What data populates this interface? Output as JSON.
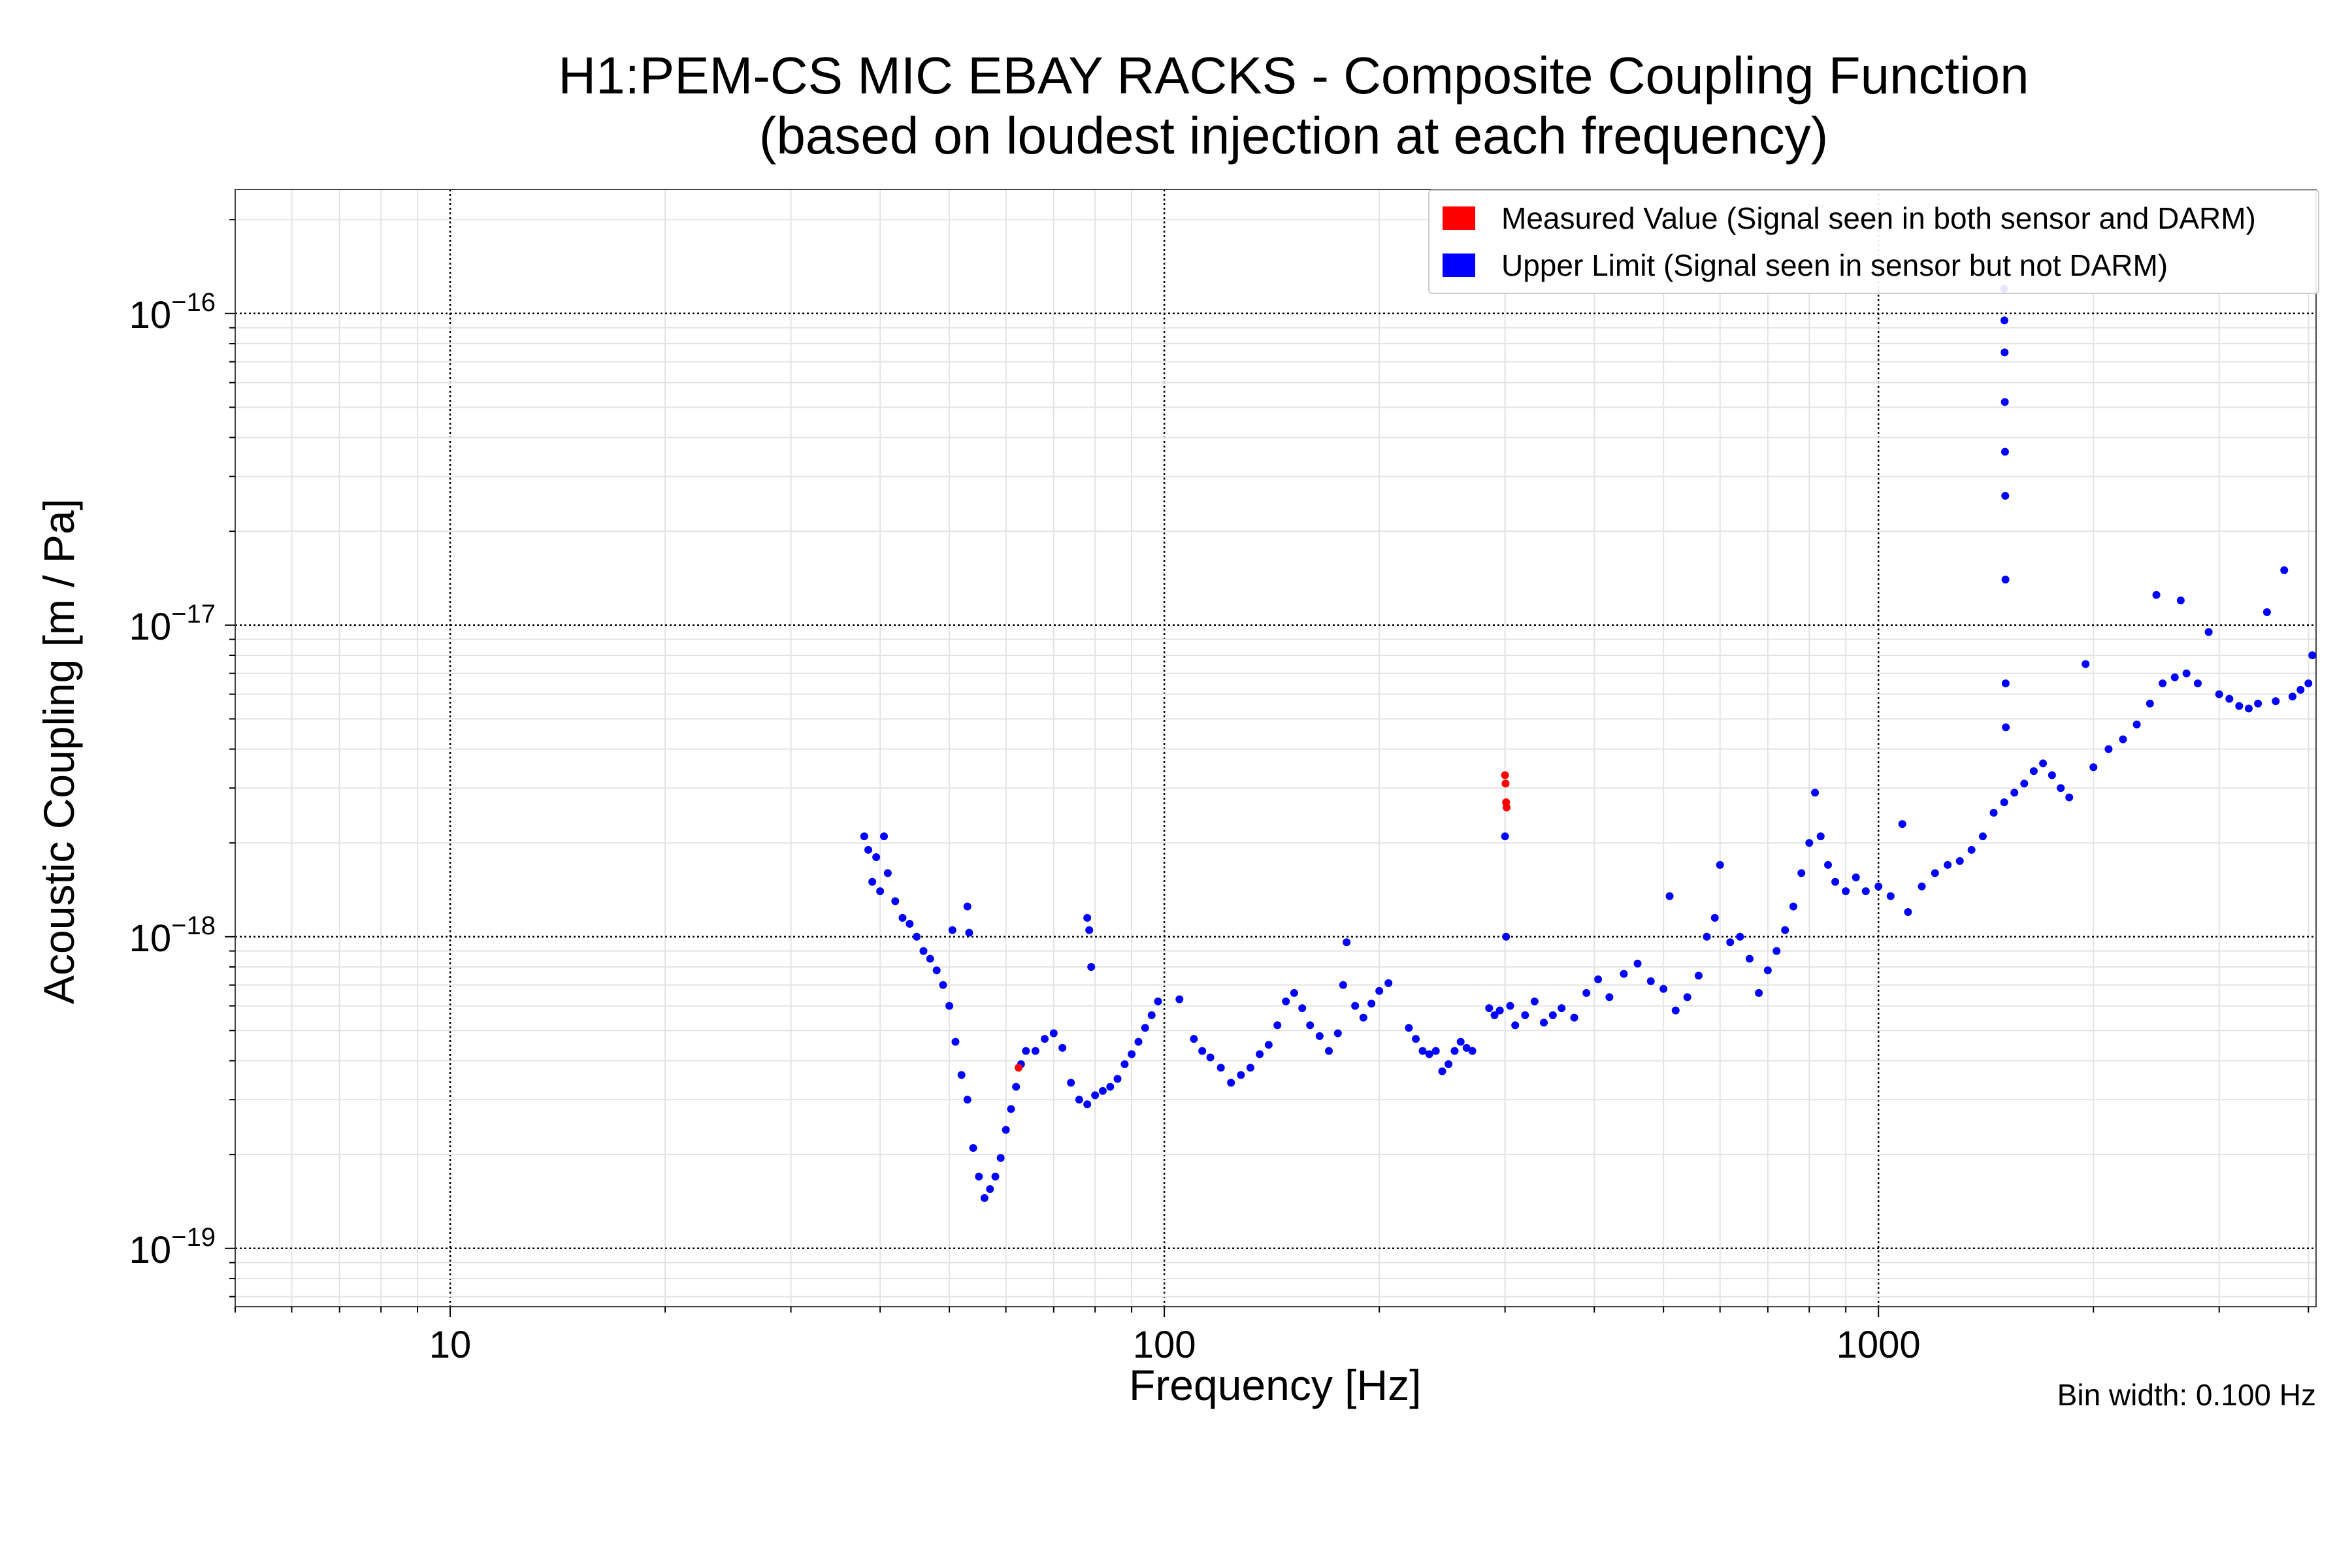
{
  "title": {
    "line1": "H1:PEM-CS MIC EBAY RACKS - Composite Coupling Function",
    "line2": "(based on loudest injection at each frequency)"
  },
  "legend": {
    "measured": {
      "label": "Measured Value (Signal seen in both sensor and DARM)",
      "color": "#ff0000"
    },
    "upper": {
      "label": "Upper Limit (Signal seen in sensor but not DARM)",
      "color": "#0000ff"
    }
  },
  "footnote": "Bin width: 0.100 Hz",
  "chart_data": {
    "type": "scatter",
    "title": "H1:PEM-CS MIC EBAY RACKS - Composite Coupling Function (based on loudest injection at each frequency)",
    "xlabel": "Frequency [Hz]",
    "ylabel": "Acoustic Coupling [m / Pa]",
    "xscale": "log",
    "yscale": "log",
    "xlim": [
      5,
      4100
    ],
    "ylim": [
      6.5e-20,
      2.5e-16
    ],
    "x_ticks": [
      {
        "value": 10,
        "label": "10"
      },
      {
        "value": 100,
        "label": "100"
      },
      {
        "value": 1000,
        "label": "1000"
      }
    ],
    "y_ticks": [
      {
        "value": 1e-19,
        "mantissa": "10",
        "exponent": "−19"
      },
      {
        "value": 1e-18,
        "mantissa": "10",
        "exponent": "−18"
      },
      {
        "value": 1e-17,
        "mantissa": "10",
        "exponent": "−17"
      },
      {
        "value": 1e-16,
        "mantissa": "10",
        "exponent": "−16"
      }
    ],
    "grid": true,
    "legend_position": "top-right",
    "series": [
      {
        "name": "Measured Value (Signal seen in both sensor and DARM)",
        "color": "#ff0000",
        "points": [
          [
            62.5,
            3.8e-19
          ],
          [
            300,
            3.3e-18
          ],
          [
            300.5,
            3.1e-18
          ],
          [
            301,
            2.7e-18
          ],
          [
            301.5,
            2.6e-18
          ]
        ]
      },
      {
        "name": "Upper Limit (Signal seen in sensor but not DARM)",
        "color": "#0000ff",
        "points": [
          [
            38,
            2.1e-18
          ],
          [
            38.5,
            1.9e-18
          ],
          [
            39,
            1.5e-18
          ],
          [
            39.5,
            1.8e-18
          ],
          [
            40,
            1.4e-18
          ],
          [
            40.5,
            2.1e-18
          ],
          [
            41,
            1.6e-18
          ],
          [
            42,
            1.3e-18
          ],
          [
            43,
            1.15e-18
          ],
          [
            44,
            1.1e-18
          ],
          [
            45,
            1e-18
          ],
          [
            46,
            9e-19
          ],
          [
            47,
            8.5e-19
          ],
          [
            48,
            7.8e-19
          ],
          [
            49,
            7e-19
          ],
          [
            50,
            6e-19
          ],
          [
            51,
            4.6e-19
          ],
          [
            52,
            3.6e-19
          ],
          [
            53,
            3e-19
          ],
          [
            54,
            2.1e-19
          ],
          [
            55,
            1.7e-19
          ],
          [
            56,
            1.45e-19
          ],
          [
            57,
            1.55e-19
          ],
          [
            58,
            1.7e-19
          ],
          [
            59,
            1.95e-19
          ],
          [
            60,
            2.4e-19
          ],
          [
            61,
            2.8e-19
          ],
          [
            62,
            3.3e-19
          ],
          [
            63,
            3.9e-19
          ],
          [
            64,
            4.3e-19
          ],
          [
            66,
            4.3e-19
          ],
          [
            68,
            4.7e-19
          ],
          [
            70,
            4.9e-19
          ],
          [
            72,
            4.4e-19
          ],
          [
            74,
            3.4e-19
          ],
          [
            76,
            3e-19
          ],
          [
            78,
            2.9e-19
          ],
          [
            80,
            3.1e-19
          ],
          [
            82,
            3.2e-19
          ],
          [
            84,
            3.3e-19
          ],
          [
            86,
            3.5e-19
          ],
          [
            88,
            3.9e-19
          ],
          [
            90,
            4.2e-19
          ],
          [
            92,
            4.6e-19
          ],
          [
            94,
            5.1e-19
          ],
          [
            96,
            5.6e-19
          ],
          [
            98,
            6.2e-19
          ],
          [
            50.5,
            1.05e-18
          ],
          [
            53,
            1.25e-18
          ],
          [
            53.3,
            1.03e-18
          ],
          [
            78,
            1.15e-18
          ],
          [
            78.5,
            1.05e-18
          ],
          [
            79,
            8e-19
          ],
          [
            105,
            6.3e-19
          ],
          [
            110,
            4.7e-19
          ],
          [
            113,
            4.3e-19
          ],
          [
            116,
            4.1e-19
          ],
          [
            120,
            3.8e-19
          ],
          [
            124,
            3.4e-19
          ],
          [
            128,
            3.6e-19
          ],
          [
            132,
            3.8e-19
          ],
          [
            136,
            4.2e-19
          ],
          [
            140,
            4.5e-19
          ],
          [
            144,
            5.2e-19
          ],
          [
            148,
            6.2e-19
          ],
          [
            152,
            6.6e-19
          ],
          [
            156,
            5.9e-19
          ],
          [
            160,
            5.2e-19
          ],
          [
            165,
            4.8e-19
          ],
          [
            170,
            4.3e-19
          ],
          [
            175,
            4.9e-19
          ],
          [
            178,
            7e-19
          ],
          [
            180,
            9.6e-19
          ],
          [
            185,
            6e-19
          ],
          [
            190,
            5.5e-19
          ],
          [
            195,
            6.1e-19
          ],
          [
            200,
            6.7e-19
          ],
          [
            206,
            7.1e-19
          ],
          [
            220,
            5.1e-19
          ],
          [
            225,
            4.7e-19
          ],
          [
            230,
            4.3e-19
          ],
          [
            235,
            4.2e-19
          ],
          [
            240,
            4.3e-19
          ],
          [
            245,
            3.7e-19
          ],
          [
            250,
            3.9e-19
          ],
          [
            255,
            4.3e-19
          ],
          [
            260,
            4.6e-19
          ],
          [
            265,
            4.4e-19
          ],
          [
            270,
            4.3e-19
          ],
          [
            285,
            5.9e-19
          ],
          [
            290,
            5.6e-19
          ],
          [
            295,
            5.8e-19
          ],
          [
            300,
            2.1e-18
          ],
          [
            301,
            1e-18
          ],
          [
            305,
            6e-19
          ],
          [
            310,
            5.2e-19
          ],
          [
            320,
            5.6e-19
          ],
          [
            330,
            6.2e-19
          ],
          [
            340,
            5.3e-19
          ],
          [
            350,
            5.6e-19
          ],
          [
            360,
            5.9e-19
          ],
          [
            375,
            5.5e-19
          ],
          [
            390,
            6.6e-19
          ],
          [
            405,
            7.3e-19
          ],
          [
            420,
            6.4e-19
          ],
          [
            440,
            7.6e-19
          ],
          [
            460,
            8.2e-19
          ],
          [
            480,
            7.2e-19
          ],
          [
            500,
            6.8e-19
          ],
          [
            510,
            1.35e-18
          ],
          [
            520,
            5.8e-19
          ],
          [
            540,
            6.4e-19
          ],
          [
            560,
            7.5e-19
          ],
          [
            575,
            1e-18
          ],
          [
            590,
            1.15e-18
          ],
          [
            600,
            1.7e-18
          ],
          [
            620,
            9.6e-19
          ],
          [
            640,
            1e-18
          ],
          [
            660,
            8.5e-19
          ],
          [
            680,
            6.6e-19
          ],
          [
            700,
            7.8e-19
          ],
          [
            720,
            9e-19
          ],
          [
            740,
            1.05e-18
          ],
          [
            760,
            1.25e-18
          ],
          [
            780,
            1.6e-18
          ],
          [
            800,
            2e-18
          ],
          [
            815,
            2.9e-18
          ],
          [
            830,
            2.1e-18
          ],
          [
            850,
            1.7e-18
          ],
          [
            870,
            1.5e-18
          ],
          [
            900,
            1.4e-18
          ],
          [
            930,
            1.55e-18
          ],
          [
            960,
            1.4e-18
          ],
          [
            1000,
            1.45e-18
          ],
          [
            1040,
            1.35e-18
          ],
          [
            1080,
            2.3e-18
          ],
          [
            1100,
            1.2e-18
          ],
          [
            1150,
            1.45e-18
          ],
          [
            1200,
            1.6e-18
          ],
          [
            1250,
            1.7e-18
          ],
          [
            1300,
            1.75e-18
          ],
          [
            1350,
            1.9e-18
          ],
          [
            1400,
            2.1e-18
          ],
          [
            1450,
            2.5e-18
          ],
          [
            1500,
            2.7e-18
          ],
          [
            1500,
            1.2e-16
          ],
          [
            1501,
            9.5e-17
          ],
          [
            1502,
            7.5e-17
          ],
          [
            1503,
            5.2e-17
          ],
          [
            1504,
            3.6e-17
          ],
          [
            1505,
            2.6e-17
          ],
          [
            1506,
            1.4e-17
          ],
          [
            1507,
            6.5e-18
          ],
          [
            1508,
            4.7e-18
          ],
          [
            1550,
            2.9e-18
          ],
          [
            1600,
            3.1e-18
          ],
          [
            1650,
            3.4e-18
          ],
          [
            1700,
            3.6e-18
          ],
          [
            1750,
            3.3e-18
          ],
          [
            1800,
            3e-18
          ],
          [
            1850,
            2.8e-18
          ],
          [
            1950,
            7.5e-18
          ],
          [
            2000,
            3.5e-18
          ],
          [
            2100,
            4e-18
          ],
          [
            2200,
            4.3e-18
          ],
          [
            2300,
            4.8e-18
          ],
          [
            2400,
            5.6e-18
          ],
          [
            2450,
            1.25e-17
          ],
          [
            2500,
            6.5e-18
          ],
          [
            2600,
            6.8e-18
          ],
          [
            2650,
            1.2e-17
          ],
          [
            2700,
            7e-18
          ],
          [
            2800,
            6.5e-18
          ],
          [
            2900,
            9.5e-18
          ],
          [
            3000,
            6e-18
          ],
          [
            3100,
            5.8e-18
          ],
          [
            3200,
            5.5e-18
          ],
          [
            3300,
            5.4e-18
          ],
          [
            3400,
            5.6e-18
          ],
          [
            3500,
            1.1e-17
          ],
          [
            3600,
            5.7e-18
          ],
          [
            3700,
            1.5e-17
          ],
          [
            3800,
            5.9e-18
          ],
          [
            3900,
            6.2e-18
          ],
          [
            4000,
            6.5e-18
          ],
          [
            4050,
            8e-18
          ]
        ]
      }
    ]
  }
}
